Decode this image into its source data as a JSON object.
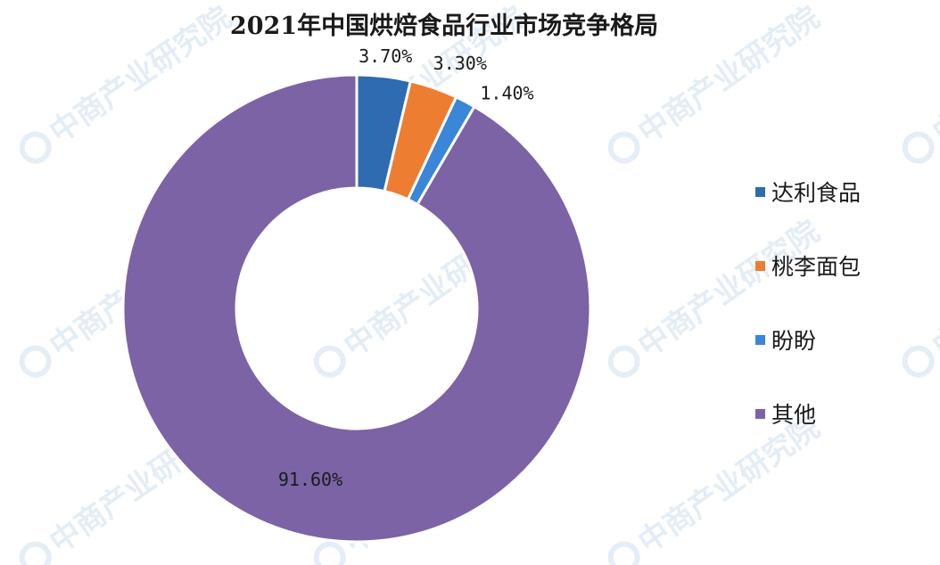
{
  "chart_data": {
    "type": "pie",
    "title": "2021年中国烘焙食品行业市场竞争格局",
    "categories": [
      "达利食品",
      "桃李面包",
      "盼盼",
      "其他"
    ],
    "values": [
      3.7,
      3.3,
      1.4,
      91.6
    ],
    "labels": [
      "3.70%",
      "3.30%",
      "1.40%",
      "91.60%"
    ],
    "colors": [
      "#2e6bb0",
      "#ed7d31",
      "#3a86d8",
      "#7b63a6"
    ],
    "legend_position": "right"
  },
  "watermark": {
    "text": "中商产业研究院"
  }
}
